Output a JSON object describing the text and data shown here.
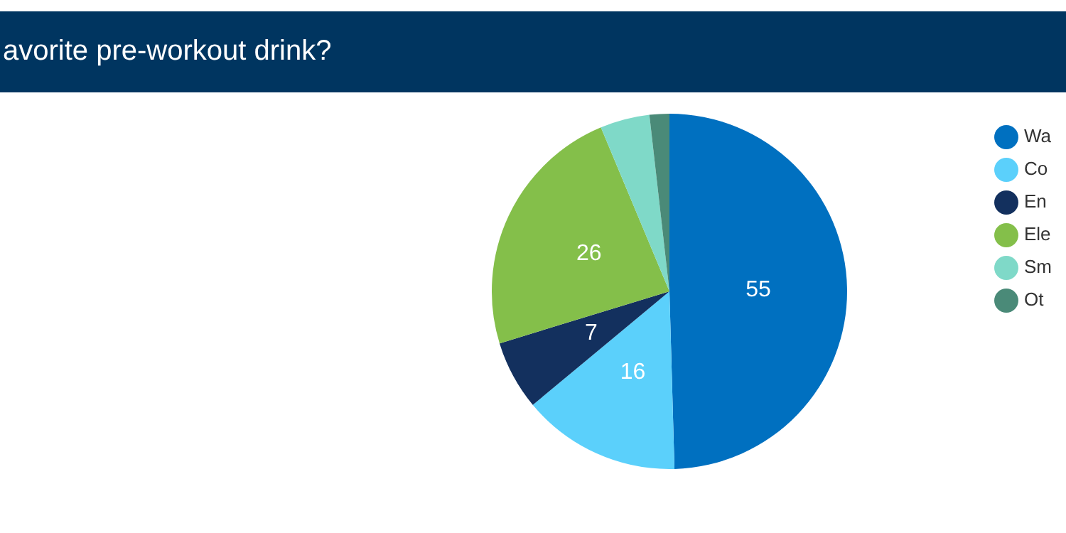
{
  "chart_data": {
    "type": "pie",
    "title": "avorite pre-workout drink?",
    "categories": [
      "Wa",
      "Co",
      "En",
      "Ele",
      "Sm",
      "Ot"
    ],
    "values": [
      55,
      16,
      7,
      26,
      5,
      2
    ],
    "colors": [
      "#0070c0",
      "#5bd0fb",
      "#13305e",
      "#84bf4a",
      "#7fd9c8",
      "#4a8a78"
    ],
    "value_labels": [
      "55",
      "16",
      "7",
      "26",
      null,
      null
    ],
    "legend": "top right"
  }
}
